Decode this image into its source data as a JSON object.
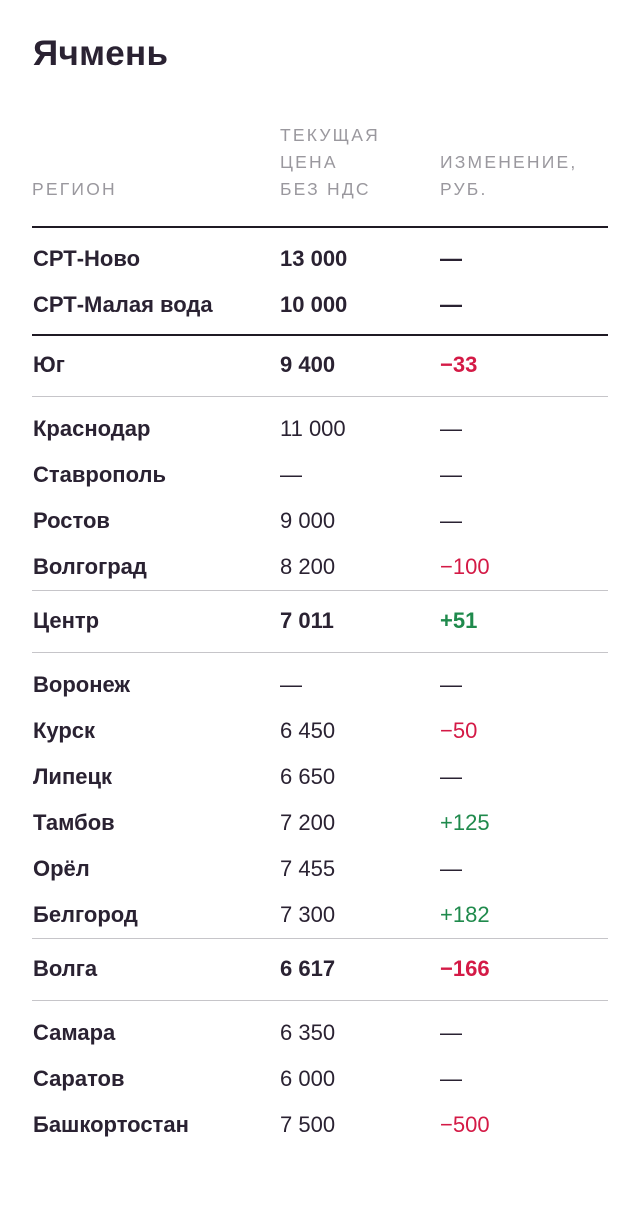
{
  "title": "Ячмень",
  "headers": {
    "region": "РЕГИОН",
    "price": "ТЕКУЩАЯ\nЦЕНА\nБЕЗ НДС",
    "change": "ИЗМЕНЕНИЕ,\nРУБ."
  },
  "colors": {
    "negative": "#d41a46",
    "positive": "#1f8a4c",
    "text": "#2a2232"
  },
  "groups": [
    {
      "rows": [
        {
          "region": "СРТ-Ново",
          "price": "13 000",
          "change": "—",
          "bold": true
        },
        {
          "region": "СРТ-Малая вода",
          "price": "10 000",
          "change": "—",
          "bold": true
        }
      ]
    },
    {
      "summary": {
        "region": "Юг",
        "price": "9 400",
        "change": "−33"
      },
      "rows": [
        {
          "region": "Краснодар",
          "price": "11 000",
          "change": "—"
        },
        {
          "region": "Ставрополь",
          "price": "—",
          "change": "—"
        },
        {
          "region": "Ростов",
          "price": "9 000",
          "change": "—"
        },
        {
          "region": "Волгоград",
          "price": "8 200",
          "change": "−100"
        }
      ]
    },
    {
      "summary": {
        "region": "Центр",
        "price": "7 011",
        "change": "+51"
      },
      "rows": [
        {
          "region": "Воронеж",
          "price": "—",
          "change": "—"
        },
        {
          "region": "Курск",
          "price": "6 450",
          "change": "−50"
        },
        {
          "region": "Липецк",
          "price": "6 650",
          "change": "—"
        },
        {
          "region": "Тамбов",
          "price": "7 200",
          "change": "+125"
        },
        {
          "region": "Орёл",
          "price": "7 455",
          "change": "—"
        },
        {
          "region": "Белгород",
          "price": "7 300",
          "change": "+182"
        }
      ]
    },
    {
      "summary": {
        "region": "Волга",
        "price": "6 617",
        "change": "−166"
      },
      "rows": [
        {
          "region": "Самара",
          "price": "6 350",
          "change": "—"
        },
        {
          "region": "Саратов",
          "price": "6 000",
          "change": "—"
        },
        {
          "region": "Башкортостан",
          "price": "7 500",
          "change": "−500"
        }
      ]
    }
  ]
}
